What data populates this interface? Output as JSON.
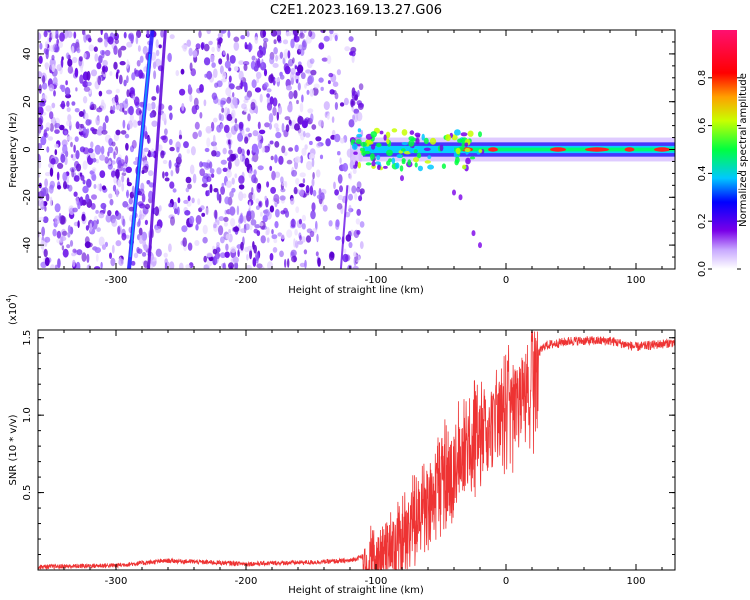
{
  "title": "C2E1.2023.169.13.27.G06",
  "colorbar": {
    "label": "Normalized spectral amplitude",
    "ticks": [
      "0.0",
      "0.2",
      "0.4",
      "0.6",
      "0.8"
    ],
    "tick_values": [
      0.0,
      0.2,
      0.4,
      0.6,
      0.8
    ],
    "range": [
      0,
      1
    ],
    "colormap": [
      "#ffffff",
      "#7a00e8",
      "#0000ff",
      "#00c8ff",
      "#00ff40",
      "#c8ff00",
      "#ffa000",
      "#ff0000",
      "#ff1070"
    ]
  },
  "chart_data": [
    {
      "type": "heatmap",
      "xlabel": "Height of straight line (km)",
      "ylabel": "Frequency (Hz)",
      "xlim": [
        -360,
        130
      ],
      "ylim": [
        -50,
        50
      ],
      "xticks": [
        -300,
        -200,
        -100,
        0,
        100
      ],
      "yticks": [
        -40,
        -20,
        0,
        20,
        40
      ],
      "features": {
        "noise_region_x": [
          -360,
          -110
        ],
        "signal_band_center_hz": 0,
        "signal_band_start_x": -120,
        "strong_line_x": [
          -290,
          -275
        ]
      }
    },
    {
      "type": "line",
      "xlabel": "Height of straight line (km)",
      "ylabel": "SNR (10 * v/v)",
      "exponent_label": "(x10",
      "exponent_power": "4",
      "exponent_close": ")",
      "xlim": [
        -360,
        130
      ],
      "ylim": [
        0,
        1.55
      ],
      "xticks": [
        -300,
        -200,
        -100,
        0,
        100
      ],
      "yticks": [
        0.5,
        1.0,
        1.5
      ],
      "ytick_labels": [
        "0.5",
        "1.0",
        "1.5"
      ],
      "color": "#ee3333",
      "series": [
        {
          "x": [
            -360,
            -300,
            -260,
            -200,
            -150,
            -120,
            -100,
            -80,
            -60,
            -40,
            -20,
            0,
            20,
            30,
            50,
            80,
            100,
            130
          ],
          "y": [
            0.02,
            0.03,
            0.06,
            0.04,
            0.05,
            0.06,
            0.12,
            0.3,
            0.55,
            0.8,
            1.0,
            1.15,
            1.35,
            1.45,
            1.48,
            1.48,
            1.44,
            1.47
          ]
        }
      ]
    }
  ]
}
